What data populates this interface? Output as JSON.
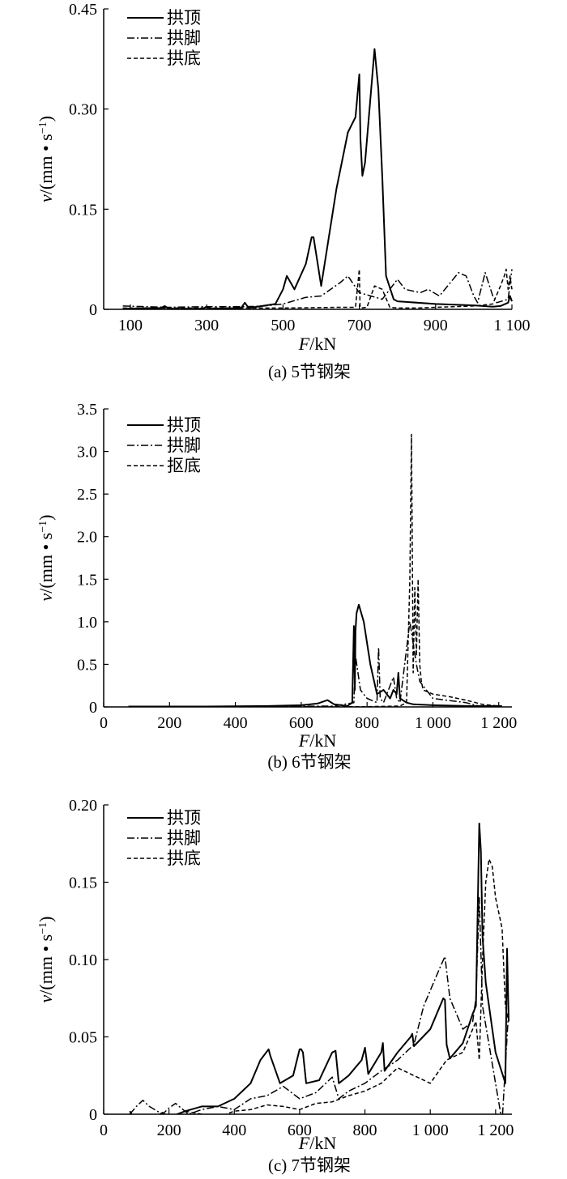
{
  "chart_data": [
    {
      "type": "line",
      "caption": "(a) 5节钢架",
      "xlabel_var": "F",
      "xlabel_unit": "/kN",
      "ylabel_var": "v",
      "ylabel_unit": "/(mm • s",
      "ylabel_exp": "−1",
      "ylabel_close": ")",
      "xlim": [
        30,
        1100
      ],
      "ylim": [
        0,
        0.45
      ],
      "xticks": [
        100,
        300,
        500,
        700,
        900,
        1100
      ],
      "xtick_labels": [
        "100",
        "300",
        "500",
        "700",
        "900",
        "1 100"
      ],
      "yticks": [
        0,
        0.15,
        0.3,
        0.45
      ],
      "ytick_labels": [
        "0",
        "0.15",
        "0.30",
        "0.45"
      ],
      "grid": false,
      "legend_position": "top-left",
      "series": [
        {
          "name": "拱顶",
          "style": "solid",
          "x": [
            80,
            180,
            190,
            200,
            290,
            300,
            310,
            390,
            400,
            410,
            480,
            500,
            510,
            530,
            560,
            575,
            580,
            600,
            640,
            670,
            690,
            700,
            703,
            708,
            715,
            740,
            750,
            760,
            770,
            790,
            800,
            900,
            1000,
            1050,
            1070,
            1090,
            1095,
            1100
          ],
          "y": [
            0.001,
            0.002,
            0.005,
            0.001,
            0.001,
            0.004,
            0.001,
            0.002,
            0.01,
            0.002,
            0.008,
            0.03,
            0.05,
            0.03,
            0.068,
            0.108,
            0.108,
            0.035,
            0.18,
            0.265,
            0.288,
            0.352,
            0.255,
            0.2,
            0.22,
            0.39,
            0.33,
            0.2,
            0.05,
            0.015,
            0.012,
            0.008,
            0.006,
            0.004,
            0.005,
            0.01,
            0.02,
            0.012
          ]
        },
        {
          "name": "拱脚",
          "style": "dashdot",
          "x": [
            80,
            200,
            300,
            400,
            450,
            500,
            560,
            600,
            650,
            670,
            700,
            730,
            760,
            800,
            820,
            860,
            880,
            910,
            960,
            980,
            1000,
            1010,
            1030,
            1050,
            1060,
            1090,
            1100
          ],
          "y": [
            0.005,
            0.003,
            0.004,
            0.004,
            0.005,
            0.008,
            0.018,
            0.02,
            0.04,
            0.05,
            0.025,
            0.02,
            0.015,
            0.045,
            0.03,
            0.025,
            0.03,
            0.02,
            0.055,
            0.05,
            0.02,
            0.01,
            0.055,
            0.02,
            0.01,
            0.015,
            0.06
          ]
        },
        {
          "name": "拱底",
          "style": "dashed",
          "x": [
            80,
            300,
            500,
            650,
            690,
            700,
            702,
            705,
            720,
            740,
            760,
            780,
            800,
            850,
            900,
            1000,
            1050,
            1070,
            1080,
            1085,
            1090,
            1095,
            1100
          ],
          "y": [
            0.002,
            0.002,
            0.002,
            0.003,
            0.003,
            0.06,
            0.003,
            0.002,
            0.003,
            0.035,
            0.03,
            0.003,
            0.002,
            0.002,
            0.003,
            0.005,
            0.008,
            0.035,
            0.05,
            0.06,
            0.03,
            0.05,
            0.03
          ]
        }
      ]
    },
    {
      "type": "line",
      "caption": "(b) 6节钢架",
      "xlabel_var": "F",
      "xlabel_unit": "/kN",
      "ylabel_var": "v",
      "ylabel_unit": "/(mm • s",
      "ylabel_exp": "−1",
      "ylabel_close": ")",
      "xlim": [
        0,
        1240
      ],
      "ylim": [
        0,
        3.5
      ],
      "xticks": [
        0,
        200,
        400,
        600,
        800,
        1000,
        1200
      ],
      "xtick_labels": [
        "0",
        "200",
        "400",
        "600",
        "800",
        "1 000",
        "1 200"
      ],
      "yticks": [
        0,
        0.5,
        1.0,
        1.5,
        2.0,
        2.5,
        3.0,
        3.5
      ],
      "ytick_labels": [
        "0",
        "0.5",
        "1.0",
        "1.5",
        "2.0",
        "2.5",
        "3.0",
        "3.5"
      ],
      "grid": false,
      "legend_position": "top-left",
      "series": [
        {
          "name": "拱顶",
          "style": "solid",
          "x": [
            75,
            300,
            500,
            600,
            650,
            680,
            700,
            740,
            755,
            760,
            763,
            765,
            768,
            775,
            790,
            810,
            830,
            850,
            870,
            880,
            890,
            895,
            900,
            920,
            940,
            1000,
            1100,
            1210
          ],
          "y": [
            0.005,
            0.005,
            0.01,
            0.02,
            0.04,
            0.08,
            0.03,
            0.01,
            0.05,
            0.95,
            0.2,
            0.9,
            1.1,
            1.2,
            1.0,
            0.5,
            0.15,
            0.2,
            0.1,
            0.2,
            0.15,
            0.4,
            0.1,
            0.05,
            0.03,
            0.02,
            0.01,
            0.01
          ]
        },
        {
          "name": "拱脚",
          "style": "dashdot",
          "x": [
            75,
            500,
            700,
            760,
            765,
            780,
            800,
            830,
            835,
            840,
            850,
            880,
            890,
            900,
            930,
            950,
            960,
            1000,
            1100,
            1140
          ],
          "y": [
            0.003,
            0.005,
            0.01,
            0.05,
            0.6,
            0.2,
            0.1,
            0.05,
            0.7,
            0.1,
            0.05,
            0.35,
            0.1,
            0.05,
            1.0,
            0.5,
            0.3,
            0.1,
            0.05,
            0.01
          ]
        },
        {
          "name": "抠底",
          "style": "dashed",
          "x": [
            75,
            600,
            800,
            900,
            920,
            930,
            935,
            940,
            945,
            950,
            955,
            960,
            965,
            970,
            1000,
            1050,
            1100,
            1150,
            1200
          ],
          "y": [
            0.002,
            0.002,
            0.003,
            0.01,
            0.05,
            1.5,
            3.2,
            0.4,
            1.4,
            0.6,
            1.5,
            0.5,
            0.3,
            0.2,
            0.15,
            0.12,
            0.08,
            0.03,
            0.01
          ]
        }
      ]
    },
    {
      "type": "line",
      "caption": "(c) 7节钢架",
      "xlabel_var": "F",
      "xlabel_unit": "/kN",
      "ylabel_var": "v",
      "ylabel_unit": "/(mm • s",
      "ylabel_exp": "−1",
      "ylabel_close": ")",
      "xlim": [
        0,
        1250
      ],
      "ylim": [
        0,
        0.2
      ],
      "xticks": [
        0,
        200,
        400,
        600,
        800,
        1000,
        1200
      ],
      "xtick_labels": [
        "0",
        "200",
        "400",
        "600",
        "800",
        "1 000",
        "1 200"
      ],
      "yticks": [
        0,
        0.05,
        0.1,
        0.15,
        0.2
      ],
      "ytick_labels": [
        "0",
        "0.05",
        "0.10",
        "0.15",
        "0.20"
      ],
      "grid": false,
      "legend_position": "top-left",
      "series": [
        {
          "name": "拱顶",
          "style": "solid",
          "x": [
            80,
            90,
            110,
            150,
            180,
            200,
            250,
            300,
            350,
            400,
            450,
            480,
            505,
            510,
            540,
            580,
            600,
            605,
            610,
            620,
            660,
            700,
            710,
            720,
            750,
            790,
            800,
            805,
            810,
            850,
            855,
            860,
            900,
            940,
            945,
            950,
            1000,
            1040,
            1045,
            1050,
            1060,
            1100,
            1130,
            1140,
            1150,
            1155,
            1160,
            1170,
            1200,
            1230,
            1235,
            1240
          ],
          "y": [
            0.002,
            -0.002,
            -0.003,
            -0.003,
            0.001,
            -0.002,
            0.002,
            0.005,
            0.005,
            0.01,
            0.02,
            0.035,
            0.042,
            0.038,
            0.02,
            0.025,
            0.042,
            0.042,
            0.04,
            0.02,
            0.022,
            0.04,
            0.041,
            0.02,
            0.025,
            0.035,
            0.043,
            0.035,
            0.026,
            0.04,
            0.046,
            0.028,
            0.04,
            0.05,
            0.052,
            0.044,
            0.055,
            0.075,
            0.074,
            0.045,
            0.036,
            0.046,
            0.065,
            0.07,
            0.188,
            0.17,
            0.115,
            0.085,
            0.04,
            0.02,
            0.107,
            0.06
          ]
        },
        {
          "name": "拱脚",
          "style": "dashdot",
          "x": [
            80,
            100,
            120,
            140,
            180,
            200,
            220,
            260,
            300,
            350,
            400,
            450,
            500,
            550,
            600,
            650,
            700,
            720,
            750,
            800,
            850,
            900,
            950,
            980,
            1000,
            1030,
            1045,
            1060,
            1100,
            1130,
            1140,
            1150,
            1160,
            1200,
            1220,
            1240
          ],
          "y": [
            0.0,
            0.005,
            0.009,
            0.005,
            0.0,
            0.004,
            0.007,
            0.0,
            0.003,
            0.005,
            0.003,
            0.01,
            0.012,
            0.018,
            0.01,
            0.014,
            0.024,
            0.01,
            0.015,
            0.02,
            0.028,
            0.035,
            0.045,
            0.07,
            0.08,
            0.095,
            0.102,
            0.075,
            0.055,
            0.06,
            0.075,
            0.14,
            0.07,
            0.02,
            -0.005,
            0.068
          ]
        },
        {
          "name": "拱底",
          "style": "dashed",
          "x": [
            80,
            150,
            200,
            250,
            300,
            350,
            400,
            450,
            500,
            550,
            600,
            650,
            700,
            750,
            800,
            850,
            900,
            950,
            1000,
            1050,
            1100,
            1140,
            1150,
            1160,
            1170,
            1180,
            1190,
            1200,
            1210,
            1220,
            1230,
            1240
          ],
          "y": [
            0.0,
            -0.005,
            -0.002,
            0.002,
            0.0,
            -0.002,
            0.002,
            0.003,
            0.006,
            0.005,
            0.003,
            0.007,
            0.008,
            0.012,
            0.015,
            0.02,
            0.03,
            0.025,
            0.02,
            0.035,
            0.04,
            0.06,
            0.035,
            0.1,
            0.15,
            0.165,
            0.16,
            0.14,
            0.13,
            0.12,
            0.07,
            0.06
          ]
        }
      ]
    }
  ]
}
